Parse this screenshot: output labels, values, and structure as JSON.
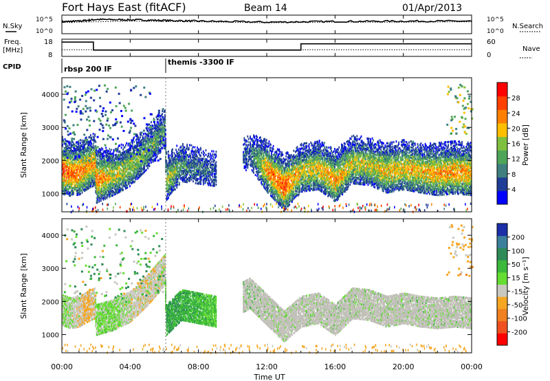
{
  "header": {
    "title": "Fort Hays East (fitACF)",
    "beam": "Beam 14",
    "date": "01/Apr/2013"
  },
  "param_panel": {
    "nsky_label": "N.Sky",
    "nsearch_label": "N.Search",
    "noise_ticks": [
      "10^5",
      "10^0"
    ],
    "freq_label_1": "Freq.",
    "freq_label_2": "[MHz]",
    "freq_ticks": [
      "18",
      "8"
    ],
    "nave_label": "Nave",
    "nave_ticks": [
      "60",
      "0"
    ],
    "cpid_label": "CPID",
    "cpid_entries": [
      "rbsp 200 IF",
      "themis -3300 IF"
    ]
  },
  "colors": {
    "power_scale": [
      "#0000ff",
      "#1f3c96",
      "#3f7f7f",
      "#4ea55a",
      "#7fbf3f",
      "#ffbf00",
      "#ff8000",
      "#ff4000",
      "#ff0000"
    ],
    "velocity_scale": [
      "#1c2fa8",
      "#3c7f9b",
      "#2e8b57",
      "#3cb83c",
      "#66dd33",
      "#c8c8c0",
      "#f5a623",
      "#f08020",
      "#f05020",
      "#ff0000"
    ],
    "ground_scatter": "#c0c0b8"
  },
  "chart_data": [
    {
      "type": "line",
      "name": "noise",
      "x_ticks": [
        "00:00",
        "04:00",
        "08:00",
        "12:00",
        "16:00",
        "20:00",
        "00:00"
      ],
      "xlim": [
        0,
        24
      ],
      "series": [
        {
          "name": "N.Sky",
          "style": "solid",
          "x": [
            0,
            1,
            2,
            4,
            6,
            8,
            12,
            16,
            20,
            24
          ],
          "y": [
            3.4,
            3.6,
            4.1,
            4.0,
            3.8,
            3.6,
            3.3,
            3.5,
            3.6,
            3.6
          ]
        },
        {
          "name": "N.Search",
          "style": "dotted",
          "x": [
            0,
            4,
            8,
            12,
            16,
            20,
            24
          ],
          "y": [
            3.2,
            3.6,
            3.4,
            3.1,
            3.3,
            3.3,
            3.4
          ]
        }
      ]
    },
    {
      "type": "line",
      "name": "frequency",
      "series": [
        {
          "name": "Freq",
          "style": "solid",
          "x": [
            0,
            1.85,
            1.85,
            14.0,
            14.0,
            24
          ],
          "y": [
            16,
            16,
            10.4,
            10.4,
            14.8,
            14.8
          ]
        },
        {
          "name": "Nave",
          "style": "dotted",
          "x": [
            0,
            24
          ],
          "y": [
            23,
            23
          ]
        }
      ]
    },
    {
      "type": "heatmap",
      "name": "power",
      "ylabel": "Slant Range [km]",
      "ylim": [
        450,
        4500
      ],
      "y_ticks": [
        1000,
        2000,
        3000,
        4000
      ],
      "colorbar_label": "Power [dB]",
      "colorbar_ticks": [
        "28",
        "24",
        "20",
        "16",
        "12",
        "8",
        "4"
      ],
      "clim": [
        0,
        32
      ],
      "band": {
        "t": [
          0.0,
          0.5,
          1.0,
          1.5,
          1.9,
          2.0,
          3.0,
          4.0,
          5.0,
          6.0,
          6.1,
          7.0,
          8.0,
          9.0,
          11.0,
          12.0,
          13.0,
          14.0,
          15.0,
          16.0,
          17.0,
          18.0,
          19.0,
          20.0,
          21.0,
          22.0,
          23.0,
          24.0
        ],
        "center_km": [
          1700,
          1600,
          1650,
          1800,
          1900,
          1400,
          1550,
          1800,
          2300,
          2900,
          1400,
          1850,
          1750,
          1650,
          2200,
          1700,
          1200,
          1650,
          1750,
          1400,
          1900,
          1850,
          1650,
          1750,
          1650,
          1600,
          1650,
          1600
        ],
        "intensity": [
          26,
          24,
          24,
          22,
          22,
          24,
          18,
          16,
          14,
          10,
          18,
          10,
          8,
          6,
          6,
          22,
          26,
          18,
          20,
          22,
          18,
          18,
          20,
          20,
          20,
          22,
          22,
          22
        ]
      }
    },
    {
      "type": "heatmap",
      "name": "velocity",
      "ylabel": "Slant Range [km]",
      "ylim": [
        450,
        4500
      ],
      "y_ticks": [
        1000,
        2000,
        3000,
        4000
      ],
      "colorbar_label": "Velocity [m s⁻¹]",
      "colorbar_ticks": [
        "200",
        "100",
        "50",
        "15",
        "-15",
        "-50",
        "-100",
        "-200"
      ],
      "clim": [
        -250,
        250
      ],
      "xlabel": "Time UT",
      "x_ticks": [
        "00:00",
        "04:00",
        "08:00",
        "12:00",
        "16:00",
        "20:00",
        "00:00"
      ],
      "band": {
        "t": [
          0.0,
          0.5,
          1.0,
          1.5,
          1.9,
          2.0,
          3.0,
          4.0,
          5.0,
          6.0,
          6.1,
          7.0,
          8.0,
          9.0,
          11.0,
          12.0,
          13.0,
          14.0,
          15.0,
          16.0,
          17.0,
          18.0,
          19.0,
          20.0,
          21.0,
          22.0,
          23.0,
          24.0
        ],
        "center_km": [
          1700,
          1600,
          1650,
          1800,
          1900,
          1400,
          1550,
          1800,
          2300,
          2900,
          1400,
          1850,
          1750,
          1650,
          2200,
          1700,
          1200,
          1650,
          1750,
          1400,
          1900,
          1850,
          1650,
          1750,
          1650,
          1600,
          1650,
          1600
        ],
        "velocity": [
          -10,
          -20,
          -40,
          -60,
          -40,
          -5,
          -5,
          -30,
          -40,
          -30,
          50,
          40,
          30,
          10,
          25,
          0,
          -5,
          0,
          0,
          0,
          0,
          0,
          0,
          0,
          0,
          0,
          0,
          0
        ]
      }
    }
  ]
}
